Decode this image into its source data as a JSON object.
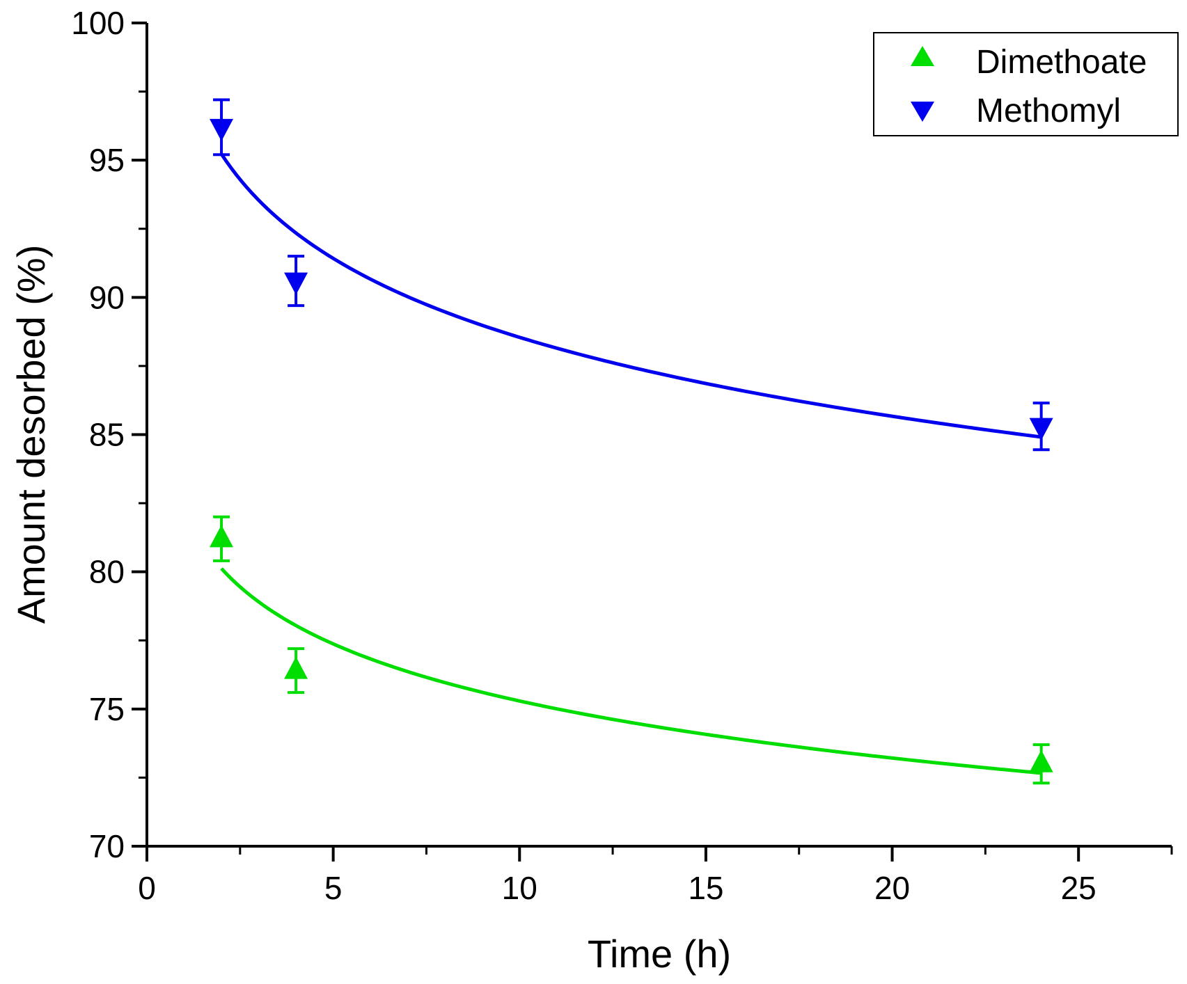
{
  "chart_data": {
    "type": "scatter",
    "title": "",
    "xlabel": "Time (h)",
    "ylabel": "Amount desorbed (%)",
    "xlim": [
      0,
      27.5
    ],
    "ylim": [
      70,
      100
    ],
    "x_ticks": [
      0,
      5,
      10,
      15,
      20,
      25
    ],
    "y_ticks": [
      70,
      75,
      80,
      85,
      90,
      95,
      100
    ],
    "x_minor_step": 2.5,
    "y_minor_step": 2.5,
    "grid": false,
    "legend_position": "top-right",
    "series": [
      {
        "name": "Dimethoate",
        "color": "#00dd00",
        "marker": "triangle-up",
        "x": [
          2,
          4,
          24
        ],
        "y": [
          81.2,
          76.4,
          73.0
        ],
        "error": [
          0.8,
          0.8,
          0.7
        ],
        "fit": {
          "model": "a + b*ln(t)",
          "a": 82.2,
          "b": -3.0,
          "t_range": [
            2,
            24
          ]
        }
      },
      {
        "name": "Methomyl",
        "color": "#0000ee",
        "marker": "triangle-down",
        "x": [
          2,
          4,
          24
        ],
        "y": [
          96.2,
          90.6,
          85.3
        ],
        "error": [
          1.0,
          0.9,
          0.85
        ],
        "fit": {
          "model": "a + b*ln(t)",
          "a": 98.1,
          "b": -4.15,
          "t_range": [
            2,
            24
          ]
        }
      }
    ]
  }
}
